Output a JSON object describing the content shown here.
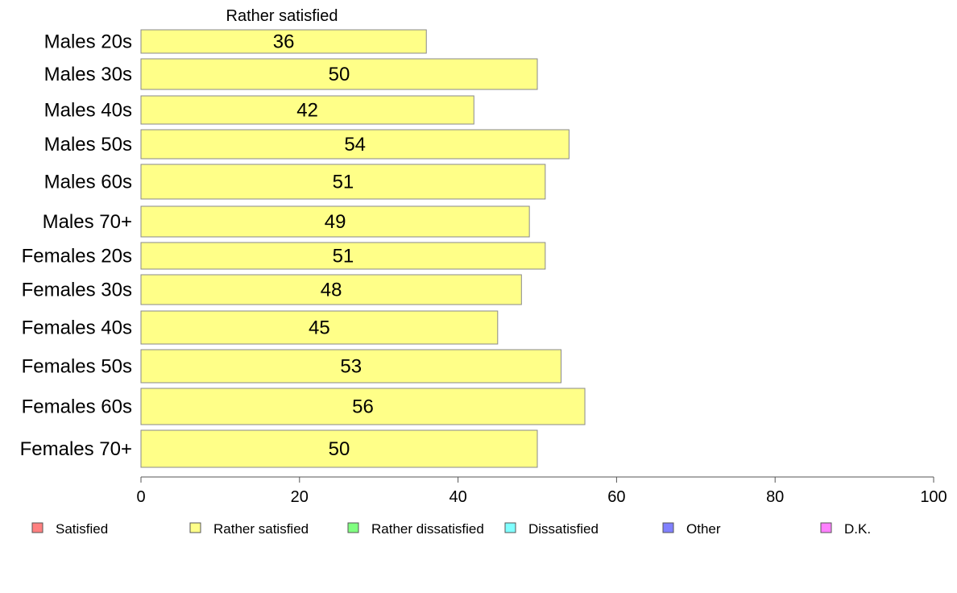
{
  "chart_data": {
    "type": "bar",
    "orientation": "horizontal",
    "stacked": true,
    "column_header": "Rather satisfied",
    "categories": [
      "Males 20s",
      "Males 30s",
      "Males 40s",
      "Males 50s",
      "Males 60s",
      "Males 70+",
      "Females 20s",
      "Females 30s",
      "Females 40s",
      "Females 50s",
      "Females 60s",
      "Females 70+"
    ],
    "series": [
      {
        "name": "Rather satisfied",
        "color": "#ffff88",
        "values": [
          36,
          50,
          42,
          54,
          51,
          49,
          51,
          48,
          45,
          53,
          56,
          50
        ]
      }
    ],
    "xlim": [
      0,
      100
    ],
    "xticks": [
      0,
      20,
      40,
      60,
      80,
      100
    ],
    "grid": false,
    "legend_position": "bottom",
    "legend": [
      {
        "label": "Satisfied",
        "color": "#ff8080"
      },
      {
        "label": "Rather satisfied",
        "color": "#ffff88"
      },
      {
        "label": "Rather dissatisfied",
        "color": "#80ff80"
      },
      {
        "label": "Dissatisfied",
        "color": "#80ffff"
      },
      {
        "label": "Other",
        "color": "#8080ff"
      },
      {
        "label": "D.K.",
        "color": "#ff80ff"
      }
    ]
  }
}
